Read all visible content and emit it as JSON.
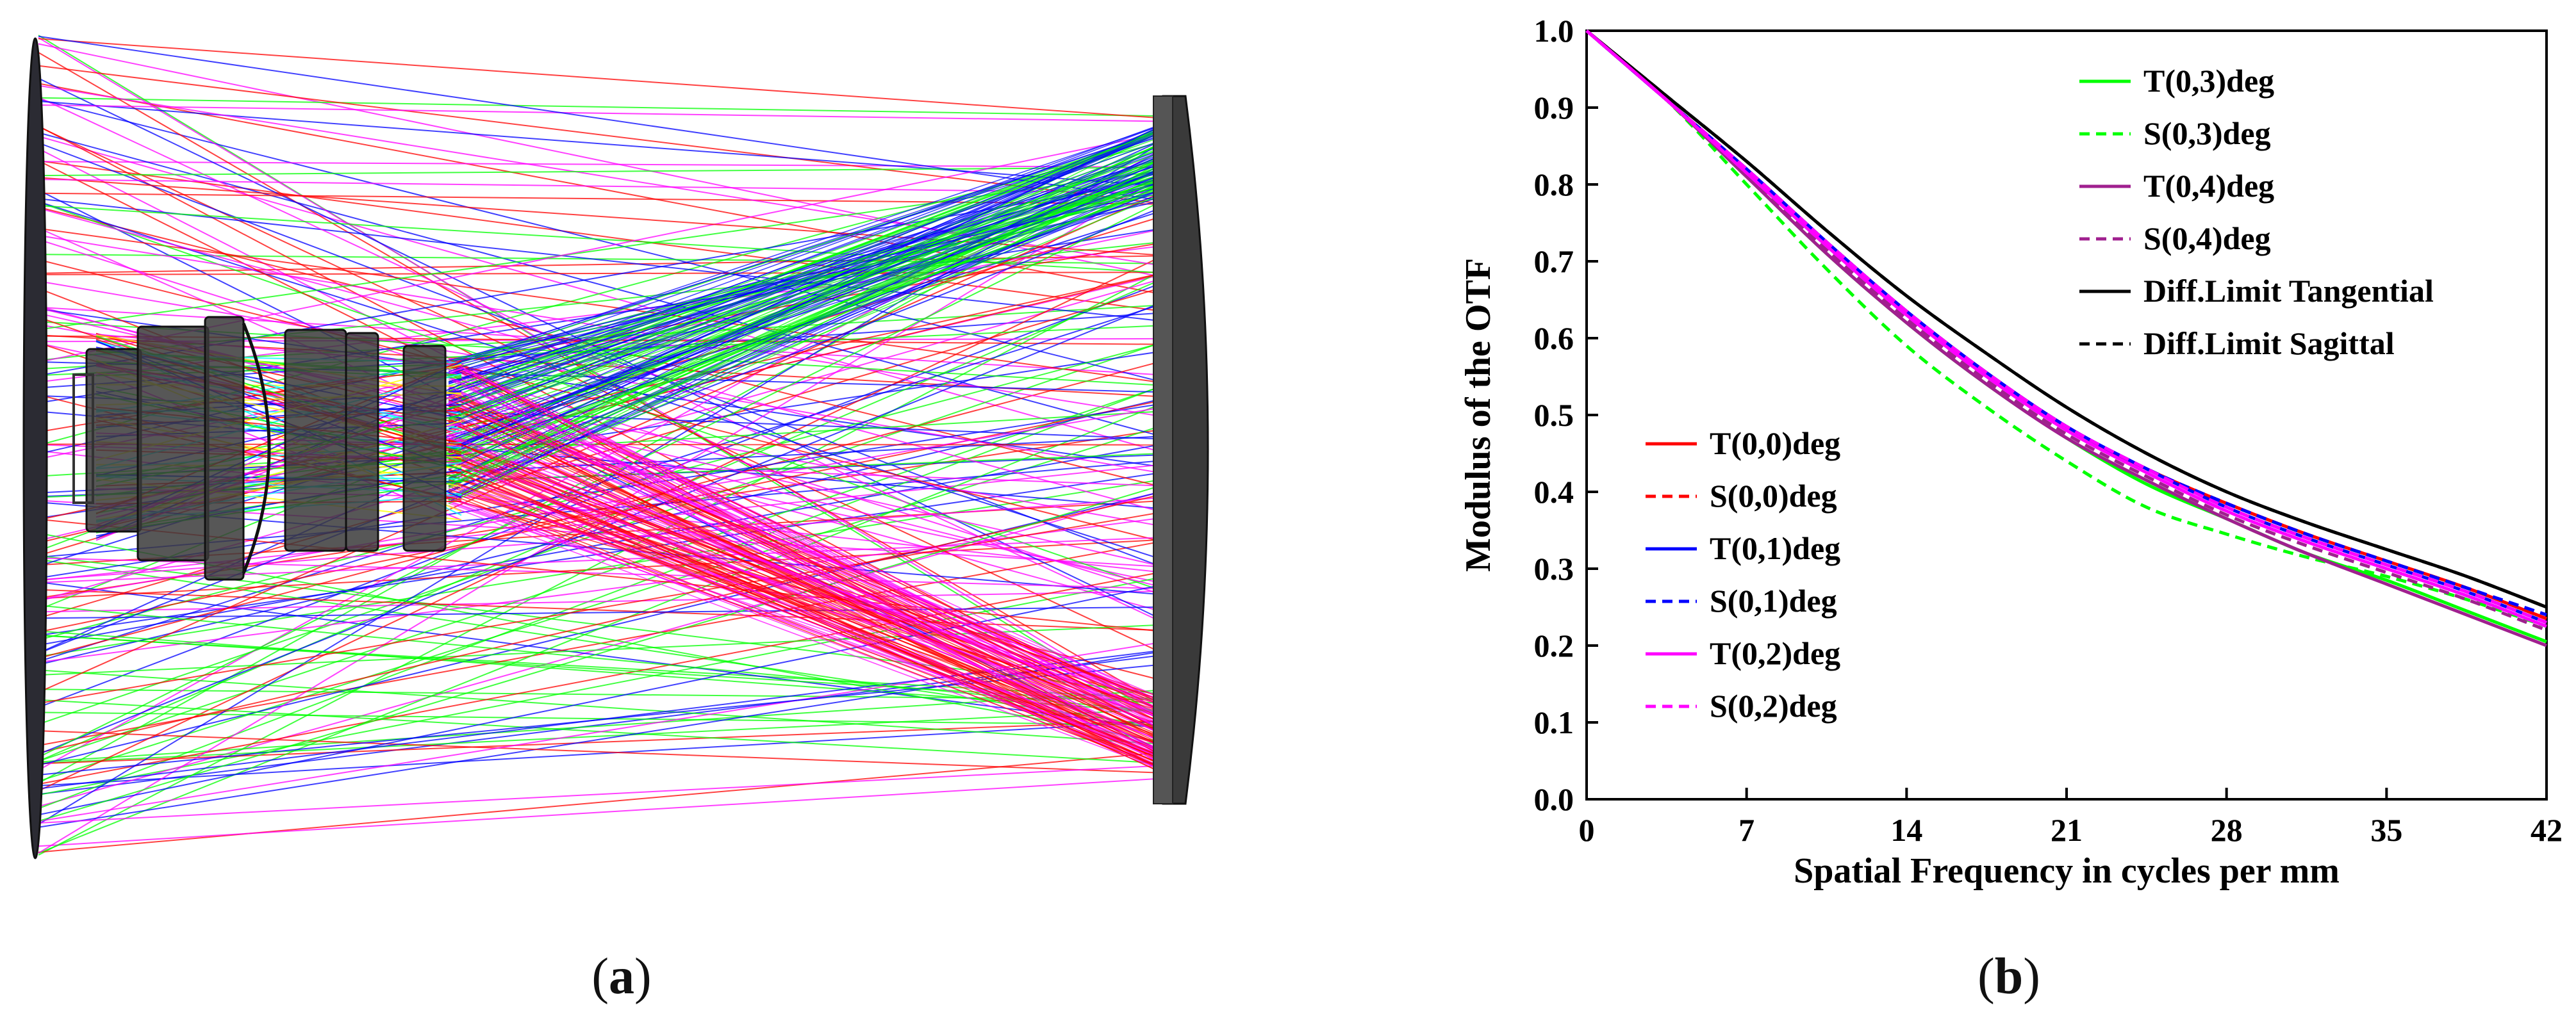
{
  "panels": {
    "a": {
      "open": "(",
      "letter": "a",
      "close": ")"
    },
    "b": {
      "open": "(",
      "letter": "b",
      "close": ")"
    }
  },
  "raytrace": {
    "ray_colors": [
      "#00ff00",
      "#ff0000",
      "#0000ff",
      "#ff00ff",
      "#ffff00",
      "#00ffff"
    ],
    "lens_color": "#3a3a3a"
  },
  "chart_data": {
    "type": "line",
    "title": "",
    "xlabel": "Spatial Frequency in cycles per mm",
    "ylabel": "Modulus of the OTF",
    "xlim": [
      0,
      42
    ],
    "ylim": [
      0,
      1.0
    ],
    "xticks": [
      0,
      7,
      14,
      21,
      28,
      35,
      42
    ],
    "xtick_labels": [
      "0",
      "7",
      "14",
      "21",
      "28",
      "35",
      "42"
    ],
    "yticks": [
      0.0,
      0.1,
      0.2,
      0.3,
      0.4,
      0.5,
      0.6,
      0.7,
      0.8,
      0.9,
      1.0
    ],
    "ytick_labels": [
      "0.0",
      "0.1",
      "0.2",
      "0.3",
      "0.4",
      "0.5",
      "0.6",
      "0.7",
      "0.8",
      "0.9",
      "1.0"
    ],
    "grid": false,
    "legend_upper_position": "top-right",
    "legend_lower_position": "center-left",
    "x": [
      0,
      3.5,
      7,
      10.5,
      14,
      17.5,
      21,
      24.5,
      28,
      31.5,
      35,
      38.5,
      42
    ],
    "series": [
      {
        "name": "T(0,3)deg",
        "color": "#00ff00",
        "dash": "solid",
        "values": [
          1.0,
          0.91,
          0.81,
          0.71,
          0.62,
          0.54,
          0.47,
          0.41,
          0.365,
          0.32,
          0.285,
          0.245,
          0.205
        ]
      },
      {
        "name": "S(0,3)deg",
        "color": "#00ff00",
        "dash": "dashed",
        "values": [
          1.0,
          0.91,
          0.8,
          0.69,
          0.59,
          0.51,
          0.44,
          0.38,
          0.345,
          0.315,
          0.29,
          0.26,
          0.225
        ]
      },
      {
        "name": "T(0,4)deg",
        "color": "#a0208f",
        "dash": "solid",
        "values": [
          1.0,
          0.91,
          0.81,
          0.71,
          0.62,
          0.54,
          0.47,
          0.415,
          0.365,
          0.32,
          0.28,
          0.24,
          0.2
        ]
      },
      {
        "name": "S(0,4)deg",
        "color": "#a0208f",
        "dash": "dashed",
        "values": [
          1.0,
          0.91,
          0.815,
          0.715,
          0.625,
          0.545,
          0.475,
          0.42,
          0.37,
          0.33,
          0.295,
          0.26,
          0.22
        ]
      },
      {
        "name": "Diff.Limit Tangential",
        "color": "#000000",
        "dash": "solid",
        "values": [
          1.0,
          0.915,
          0.83,
          0.74,
          0.655,
          0.58,
          0.51,
          0.45,
          0.4,
          0.36,
          0.325,
          0.29,
          0.25
        ]
      },
      {
        "name": "Diff.Limit Sagittal",
        "color": "#000000",
        "dash": "dashed",
        "values": [
          1.0,
          0.915,
          0.83,
          0.74,
          0.655,
          0.58,
          0.51,
          0.45,
          0.4,
          0.36,
          0.325,
          0.29,
          0.25
        ]
      },
      {
        "name": "T(0,0)deg",
        "color": "#ff0000",
        "dash": "solid",
        "values": [
          1.0,
          0.91,
          0.82,
          0.725,
          0.635,
          0.555,
          0.485,
          0.43,
          0.385,
          0.345,
          0.31,
          0.275,
          0.235
        ]
      },
      {
        "name": "S(0,0)deg",
        "color": "#ff0000",
        "dash": "dashed",
        "values": [
          1.0,
          0.91,
          0.82,
          0.725,
          0.635,
          0.555,
          0.485,
          0.43,
          0.385,
          0.345,
          0.31,
          0.275,
          0.235
        ]
      },
      {
        "name": "T(0,1)deg",
        "color": "#0000ff",
        "dash": "solid",
        "values": [
          1.0,
          0.91,
          0.82,
          0.725,
          0.635,
          0.555,
          0.485,
          0.43,
          0.38,
          0.34,
          0.305,
          0.27,
          0.23
        ]
      },
      {
        "name": "S(0,1)deg",
        "color": "#0000ff",
        "dash": "dashed",
        "values": [
          1.0,
          0.91,
          0.82,
          0.725,
          0.635,
          0.555,
          0.485,
          0.43,
          0.385,
          0.345,
          0.31,
          0.275,
          0.24
        ]
      },
      {
        "name": "T(0,2)deg",
        "color": "#ff00ff",
        "dash": "solid",
        "values": [
          1.0,
          0.91,
          0.815,
          0.72,
          0.63,
          0.55,
          0.48,
          0.425,
          0.375,
          0.335,
          0.3,
          0.265,
          0.225
        ]
      },
      {
        "name": "S(0,2)deg",
        "color": "#ff00ff",
        "dash": "dashed",
        "values": [
          1.0,
          0.91,
          0.82,
          0.725,
          0.635,
          0.555,
          0.485,
          0.43,
          0.38,
          0.34,
          0.305,
          0.27,
          0.23
        ]
      }
    ],
    "legend_upper": [
      "T(0,3)deg",
      "S(0,3)deg",
      "T(0,4)deg",
      "S(0,4)deg",
      "Diff.Limit Tangential",
      "Diff.Limit Sagittal"
    ],
    "legend_lower": [
      "T(0,0)deg",
      "S(0,0)deg",
      "T(0,1)deg",
      "S(0,1)deg",
      "T(0,2)deg",
      "S(0,2)deg"
    ]
  }
}
